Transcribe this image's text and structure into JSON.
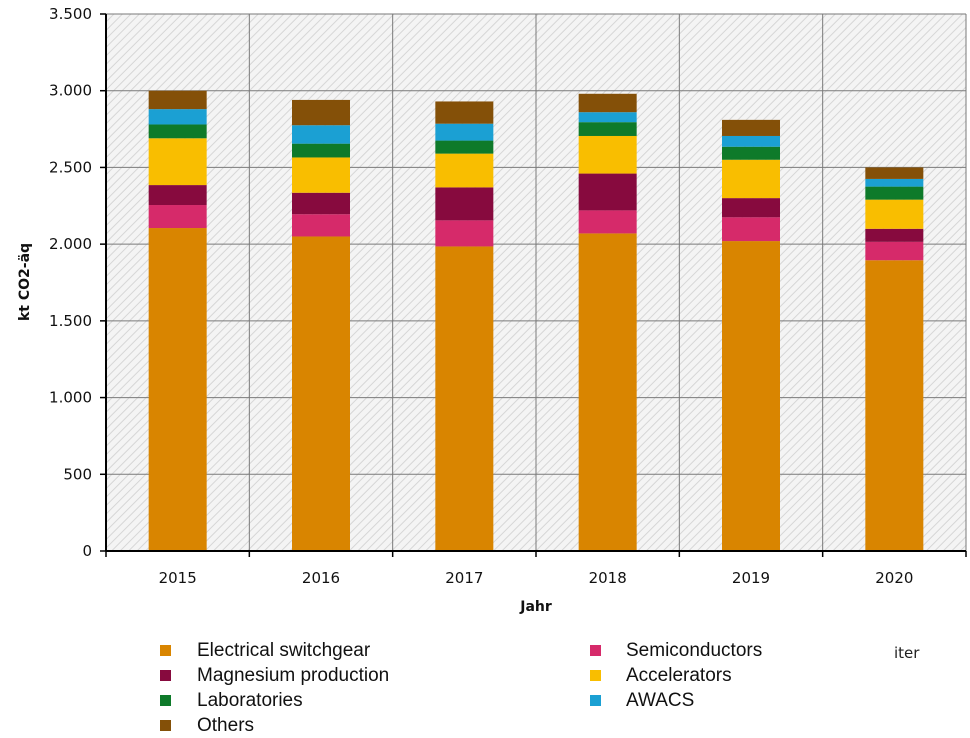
{
  "chart_data": {
    "type": "bar",
    "stacked": true,
    "categories": [
      "2015",
      "2016",
      "2017",
      "2018",
      "2019",
      "2020"
    ],
    "series": [
      {
        "name": "Electrical switchgear",
        "color": "#D98500",
        "values": [
          2105,
          2050,
          1985,
          2070,
          2020,
          1895
        ]
      },
      {
        "name": "Semiconductors",
        "color": "#D62A6A",
        "values": [
          150,
          145,
          170,
          150,
          155,
          120
        ]
      },
      {
        "name": "Magnesium production",
        "color": "#870A3E",
        "values": [
          130,
          140,
          215,
          240,
          125,
          85
        ]
      },
      {
        "name": "Accelerators",
        "color": "#F9BE00",
        "values": [
          305,
          230,
          220,
          245,
          250,
          190
        ]
      },
      {
        "name": "Laboratories",
        "color": "#0E7A2A",
        "values": [
          90,
          90,
          85,
          90,
          85,
          85
        ]
      },
      {
        "name": "AWACS",
        "color": "#1BA0D3",
        "values": [
          100,
          120,
          110,
          65,
          70,
          50
        ]
      },
      {
        "name": "Others",
        "color": "#845008",
        "values": [
          120,
          165,
          145,
          120,
          105,
          75
        ]
      }
    ],
    "xlabel": "Jahr",
    "ylabel": "kt CO2-äq",
    "ylim": [
      0,
      3500
    ],
    "yticks": [
      0,
      500,
      1000,
      1500,
      2000,
      2500,
      3000,
      3500
    ],
    "ytick_labels": [
      "0",
      "500",
      "1.000",
      "1.500",
      "2.000",
      "2.500",
      "3.000",
      "3.500"
    ],
    "grid": true,
    "legend_position": "bottom",
    "legend_columns": [
      [
        "Electrical switchgear",
        "Magnesium production",
        "Laboratories",
        "Others"
      ],
      [
        "Semiconductors",
        "Accelerators",
        "AWACS"
      ]
    ]
  },
  "stray_text": "iter"
}
